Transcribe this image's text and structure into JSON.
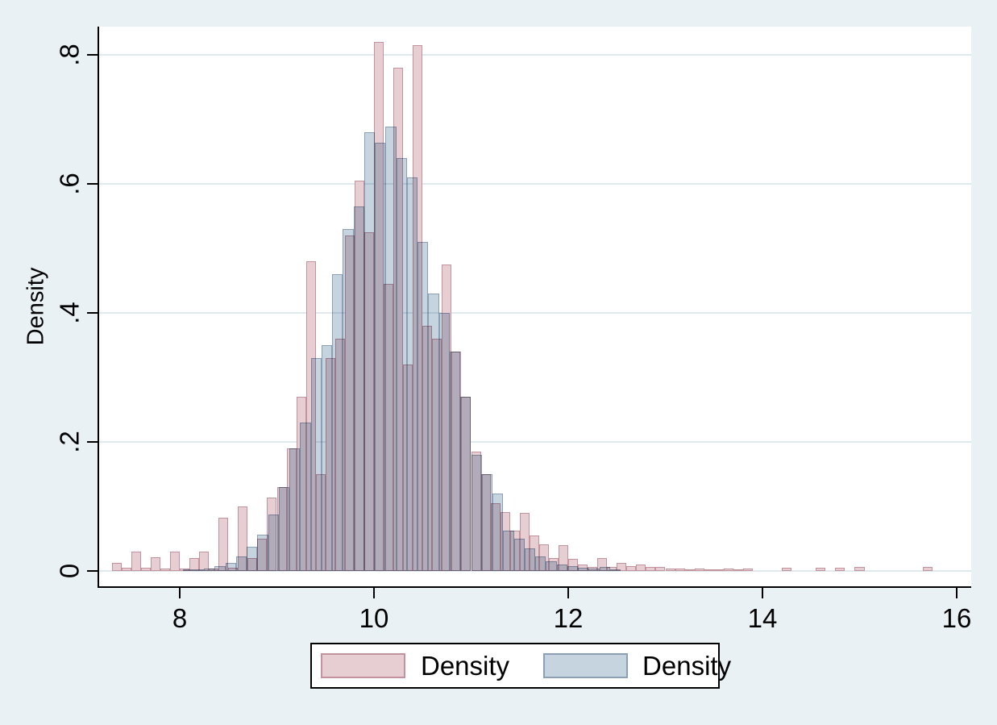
{
  "window": {
    "background_color": "#eaf1f4",
    "plot_background_color": "#ffffff",
    "gridline_color": "#dfe9ee",
    "axis_color": "#000000"
  },
  "chart_data": {
    "type": "bar",
    "subtype": "overlaid-histograms",
    "title": "",
    "xlabel": "",
    "ylabel": "Density",
    "grid": true,
    "xlim": [
      7.14,
      16.17
    ],
    "ylim": [
      0,
      0.845
    ],
    "x_ticks": [
      8,
      10,
      12,
      14,
      16
    ],
    "y_ticks": [
      {
        "v": 0,
        "label": "0"
      },
      {
        "v": 0.2,
        "label": ".2"
      },
      {
        "v": 0.4,
        "label": ".4"
      },
      {
        "v": 0.6,
        "label": ".6"
      },
      {
        "v": 0.8,
        "label": ".8"
      }
    ],
    "legend_position": "bottom-center",
    "legend": [
      {
        "label": "Density",
        "series": 0
      },
      {
        "label": "Density",
        "series": 1
      }
    ],
    "series": [
      {
        "name": "Density",
        "color_fill": "#e6ced3",
        "color_border": "#c2939c",
        "bin_width": 0.1,
        "bins": [
          [
            7.3,
            0.013
          ],
          [
            7.4,
            0.005
          ],
          [
            7.5,
            0.03
          ],
          [
            7.6,
            0.005
          ],
          [
            7.7,
            0.021
          ],
          [
            7.8,
            0.004
          ],
          [
            7.9,
            0.03
          ],
          [
            8.0,
            0.004
          ],
          [
            8.1,
            0.02
          ],
          [
            8.2,
            0.03
          ],
          [
            8.3,
            0.004
          ],
          [
            8.4,
            0.082
          ],
          [
            8.5,
            0.005
          ],
          [
            8.6,
            0.1
          ],
          [
            8.7,
            0.02
          ],
          [
            8.8,
            0.05
          ],
          [
            8.9,
            0.114
          ],
          [
            9.0,
            0.13
          ],
          [
            9.1,
            0.19
          ],
          [
            9.2,
            0.27
          ],
          [
            9.3,
            0.48
          ],
          [
            9.4,
            0.15
          ],
          [
            9.5,
            0.33
          ],
          [
            9.6,
            0.36
          ],
          [
            9.7,
            0.52
          ],
          [
            9.8,
            0.605
          ],
          [
            9.9,
            0.525
          ],
          [
            10.0,
            0.82
          ],
          [
            10.1,
            0.445
          ],
          [
            10.2,
            0.78
          ],
          [
            10.3,
            0.32
          ],
          [
            10.4,
            0.815
          ],
          [
            10.5,
            0.38
          ],
          [
            10.6,
            0.36
          ],
          [
            10.7,
            0.475
          ],
          [
            10.8,
            0.34
          ],
          [
            10.9,
            0.27
          ],
          [
            11.0,
            0.185
          ],
          [
            11.1,
            0.15
          ],
          [
            11.2,
            0.105
          ],
          [
            11.3,
            0.091
          ],
          [
            11.4,
            0.062
          ],
          [
            11.5,
            0.09
          ],
          [
            11.6,
            0.055
          ],
          [
            11.7,
            0.041
          ],
          [
            11.8,
            0.02
          ],
          [
            11.9,
            0.04
          ],
          [
            12.0,
            0.019
          ],
          [
            12.1,
            0.01
          ],
          [
            12.2,
            0.006
          ],
          [
            12.3,
            0.02
          ],
          [
            12.4,
            0.006
          ],
          [
            12.5,
            0.013
          ],
          [
            12.6,
            0.008
          ],
          [
            12.7,
            0.01
          ],
          [
            12.8,
            0.006
          ],
          [
            12.9,
            0.006
          ],
          [
            13.0,
            0.004
          ],
          [
            13.1,
            0.004
          ],
          [
            13.2,
            0.003
          ],
          [
            13.3,
            0.004
          ],
          [
            13.4,
            0.003
          ],
          [
            13.5,
            0.003
          ],
          [
            13.6,
            0.004
          ],
          [
            13.7,
            0.003
          ],
          [
            13.8,
            0.004
          ],
          [
            14.2,
            0.005
          ],
          [
            14.55,
            0.005
          ],
          [
            14.75,
            0.005
          ],
          [
            14.95,
            0.006
          ],
          [
            15.65,
            0.006
          ]
        ]
      },
      {
        "name": "Density",
        "color_fill": "#c6d4e0",
        "color_border": "#8ba0b6",
        "bin_width": 0.11,
        "bins": [
          [
            8.03,
            0.002
          ],
          [
            8.14,
            0.003
          ],
          [
            8.25,
            0.004
          ],
          [
            8.36,
            0.007
          ],
          [
            8.47,
            0.012
          ],
          [
            8.58,
            0.023
          ],
          [
            8.69,
            0.037
          ],
          [
            8.8,
            0.056
          ],
          [
            8.91,
            0.088
          ],
          [
            9.02,
            0.13
          ],
          [
            9.13,
            0.19
          ],
          [
            9.24,
            0.23
          ],
          [
            9.35,
            0.33
          ],
          [
            9.46,
            0.35
          ],
          [
            9.57,
            0.46
          ],
          [
            9.68,
            0.53
          ],
          [
            9.79,
            0.565
          ],
          [
            9.9,
            0.68
          ],
          [
            10.01,
            0.664
          ],
          [
            10.12,
            0.689
          ],
          [
            10.23,
            0.64
          ],
          [
            10.34,
            0.61
          ],
          [
            10.45,
            0.51
          ],
          [
            10.56,
            0.43
          ],
          [
            10.67,
            0.4
          ],
          [
            10.78,
            0.34
          ],
          [
            10.89,
            0.27
          ],
          [
            11.0,
            0.18
          ],
          [
            11.11,
            0.15
          ],
          [
            11.22,
            0.12
          ],
          [
            11.33,
            0.0625
          ],
          [
            11.44,
            0.05
          ],
          [
            11.55,
            0.035
          ],
          [
            11.66,
            0.022
          ],
          [
            11.77,
            0.015
          ],
          [
            11.88,
            0.01
          ],
          [
            11.99,
            0.007
          ],
          [
            12.1,
            0.005
          ],
          [
            12.21,
            0.004
          ],
          [
            12.32,
            0.006
          ],
          [
            12.43,
            0.003
          ]
        ]
      }
    ]
  }
}
